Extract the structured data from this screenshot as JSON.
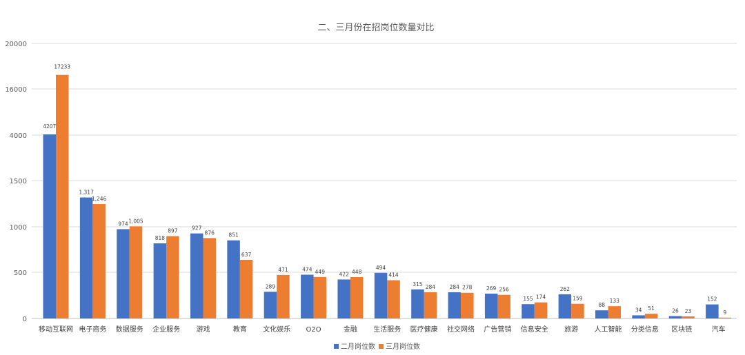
{
  "chart_data": {
    "type": "bar",
    "title": "二、三月份在招岗位数量对比",
    "xlabel": "",
    "ylabel": "",
    "y_tick_labels": [
      "0",
      "500",
      "1000",
      "1500",
      "4000",
      "16000",
      "20000"
    ],
    "categories": [
      "移动互联网",
      "电子商务",
      "数据服务",
      "企业服务",
      "游戏",
      "教育",
      "文化娱乐",
      "O2O",
      "金融",
      "生活服务",
      "医疗健康",
      "社交网络",
      "广告营销",
      "信息安全",
      "旅游",
      "人工智能",
      "分类信息",
      "区块链",
      "汽车"
    ],
    "series": [
      {
        "name": "二月岗位数",
        "color": "#4472C4",
        "values": [
          4207,
          1317,
          974,
          818,
          927,
          851,
          289,
          474,
          422,
          494,
          315,
          284,
          269,
          155,
          262,
          88,
          34,
          26,
          152
        ],
        "labels": [
          "4207",
          "1,317",
          "974",
          "818",
          "927",
          "851",
          "289",
          "474",
          "422",
          "494",
          "315",
          "284",
          "269",
          "155",
          "262",
          "88",
          "34",
          "26",
          "152"
        ]
      },
      {
        "name": "三月岗位数",
        "color": "#ED7D31",
        "values": [
          17233,
          1246,
          1005,
          897,
          876,
          637,
          471,
          449,
          448,
          414,
          284,
          278,
          256,
          174,
          159,
          133,
          51,
          23,
          9
        ],
        "labels": [
          "17233",
          "1,246",
          "1,005",
          "897",
          "876",
          "637",
          "471",
          "449",
          "448",
          "414",
          "284",
          "278",
          "256",
          "174",
          "159",
          "133",
          "51",
          "23",
          "9"
        ]
      }
    ],
    "grid": true,
    "legend_position": "bottom"
  }
}
